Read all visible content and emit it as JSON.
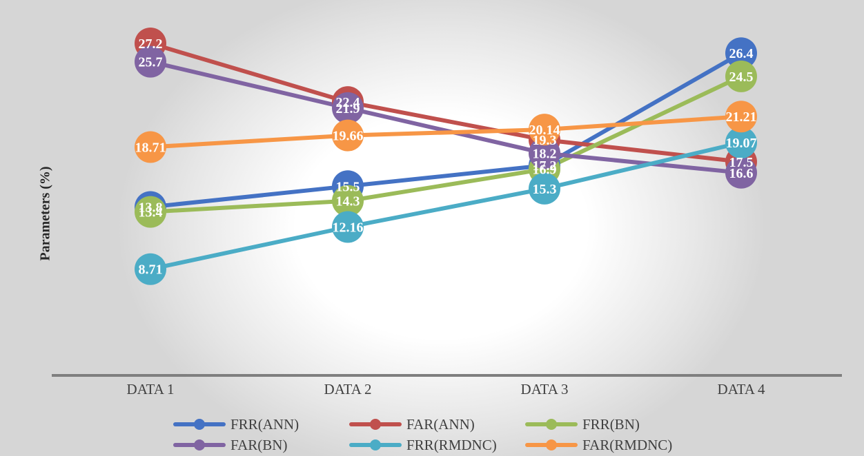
{
  "chart_data": {
    "type": "line",
    "title": "",
    "xlabel": "",
    "ylabel": "Parameters (%)",
    "categories": [
      "DATA 1",
      "DATA 2",
      "DATA 3",
      "DATA 4"
    ],
    "ylim": [
      0,
      30
    ],
    "grid": false,
    "legend_position": "bottom",
    "series": [
      {
        "name": "FRR(ANN)",
        "color": "#4472C4",
        "values": [
          13.8,
          15.5,
          17.2,
          26.4
        ],
        "labels": [
          "13.8",
          "15.5",
          "17.2",
          "26.4"
        ]
      },
      {
        "name": "FAR(ANN)",
        "color": "#C0504D",
        "values": [
          27.2,
          22.4,
          19.3,
          17.5
        ],
        "labels": [
          "27.2",
          "22.4",
          "19.3",
          "17.5"
        ]
      },
      {
        "name": "FRR(BN)",
        "color": "#9BBB59",
        "values": [
          13.4,
          14.3,
          16.9,
          24.5
        ],
        "labels": [
          "13.4",
          "14.3",
          "16.9",
          "24.5"
        ]
      },
      {
        "name": "FAR(BN)",
        "color": "#8064A2",
        "values": [
          25.7,
          21.9,
          18.2,
          16.6
        ],
        "labels": [
          "25.7",
          "21.9",
          "18.2",
          "16.6"
        ]
      },
      {
        "name": "FRR(RMDNC)",
        "color": "#4BACC6",
        "values": [
          8.71,
          12.16,
          15.3,
          19.07
        ],
        "labels": [
          "8.71",
          "12.16",
          "15.3",
          "19.07"
        ]
      },
      {
        "name": "FAR(RMDNC)",
        "color": "#F79646",
        "values": [
          18.71,
          19.66,
          20.14,
          21.21
        ],
        "labels": [
          "18.71",
          "19.66",
          "20.14",
          "21.21"
        ]
      }
    ]
  }
}
